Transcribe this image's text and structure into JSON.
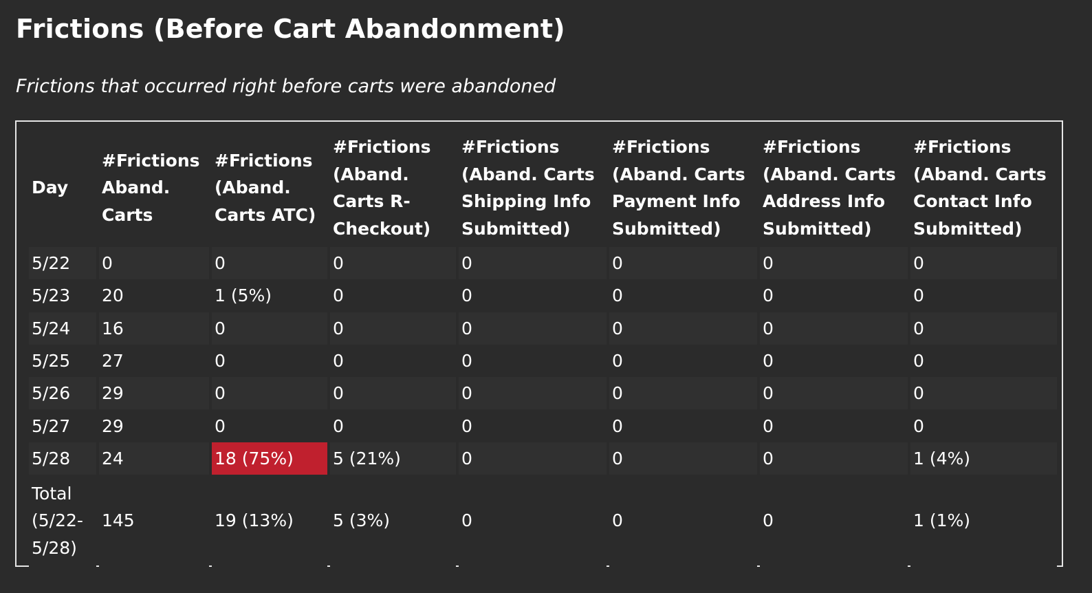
{
  "page": {
    "title": "Frictions (Before Cart Abandonment)",
    "subtitle": "Frictions that occurred right before carts were abandoned"
  },
  "table": {
    "columns": [
      "Day",
      "#Frictions Aband. Carts",
      "#Frictions (Aband. Carts ATC)",
      "#Frictions (Aband. Carts R-Checkout)",
      "#Frictions (Aband. Carts Shipping Info Submitted)",
      "#Frictions (Aband. Carts Payment Info Submitted)",
      "#Frictions (Aband. Carts Address Info Submitted)",
      "#Frictions (Aband. Carts Contact Info Submitted)"
    ],
    "rows": [
      [
        "5/22",
        "0",
        "0",
        "0",
        "0",
        "0",
        "0",
        "0"
      ],
      [
        "5/23",
        "20",
        "1 (5%)",
        "0",
        "0",
        "0",
        "0",
        "0"
      ],
      [
        "5/24",
        "16",
        "0",
        "0",
        "0",
        "0",
        "0",
        "0"
      ],
      [
        "5/25",
        "27",
        "0",
        "0",
        "0",
        "0",
        "0",
        "0"
      ],
      [
        "5/26",
        "29",
        "0",
        "0",
        "0",
        "0",
        "0",
        "0"
      ],
      [
        "5/27",
        "29",
        "0",
        "0",
        "0",
        "0",
        "0",
        "0"
      ],
      [
        "5/28",
        "24",
        "18 (75%)",
        "5 (21%)",
        "0",
        "0",
        "0",
        "1 (4%)"
      ]
    ],
    "total_row": [
      "Total (5/22-5/28)",
      "145",
      "19 (13%)",
      "5 (3%)",
      "0",
      "0",
      "0",
      "1 (1%)"
    ],
    "highlight_color": "#c0202e"
  }
}
